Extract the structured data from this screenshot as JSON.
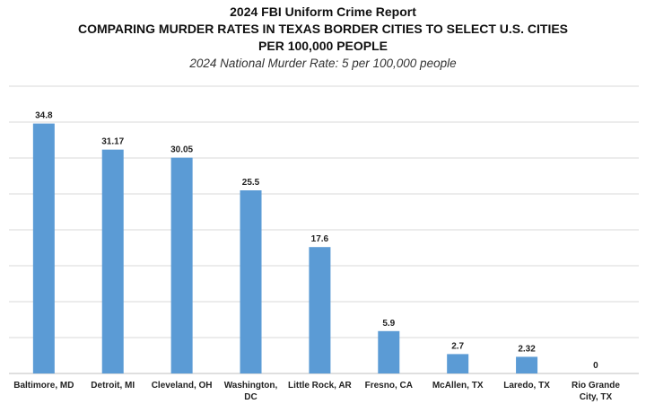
{
  "header": {
    "title": "2024 FBI Uniform Crime Report",
    "subtitle_line1": "COMPARING MURDER RATES IN TEXAS BORDER CITIES TO SELECT U.S. CITIES",
    "subtitle_line2": "PER 100,000 PEOPLE",
    "note": "2024 National Murder Rate: 5 per 100,000 people"
  },
  "chart_data": {
    "type": "bar",
    "title": "2024 FBI Uniform Crime Report",
    "categories": [
      [
        "Baltimore, MD"
      ],
      [
        "Detroit, MI"
      ],
      [
        "Cleveland, OH"
      ],
      [
        "Washington,",
        "DC"
      ],
      [
        "Little Rock, AR"
      ],
      [
        "Fresno, CA"
      ],
      [
        "McAllen, TX"
      ],
      [
        "Laredo, TX"
      ],
      [
        "Rio Grande",
        "City, TX"
      ]
    ],
    "values": [
      34.8,
      31.17,
      30.05,
      25.5,
      17.6,
      5.9,
      2.7,
      2.32,
      0
    ],
    "value_labels": [
      "34.8",
      "31.17",
      "30.05",
      "25.5",
      "17.6",
      "5.9",
      "2.7",
      "2.32",
      "0"
    ],
    "xlabel": "",
    "ylabel": "",
    "ylim": [
      0,
      40
    ],
    "grid": true,
    "legend": "none",
    "colors": {
      "bar": "#5b9bd5",
      "grid": "#d9d9d9"
    }
  }
}
